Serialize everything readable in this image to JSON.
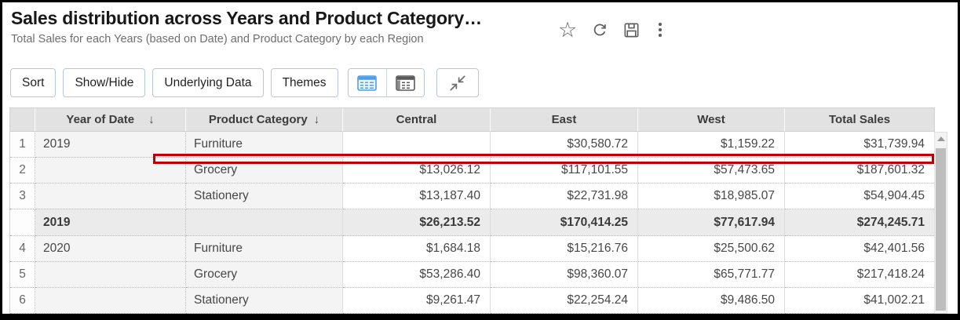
{
  "header": {
    "title": "Sales distribution across Years and Product Category…",
    "subtitle": "Total Sales for each Years (based on Date) and Product Category by each Region",
    "actions": [
      "favorite",
      "refresh",
      "save",
      "more-options"
    ]
  },
  "toolbar": {
    "buttons": [
      "Sort",
      "Show/Hide",
      "Underlying Data",
      "Themes"
    ],
    "view_toggle": [
      "table-view",
      "pivot-view"
    ],
    "collapse": "collapse-panel",
    "accent_color": "#4f9fe6"
  },
  "table": {
    "columns": [
      "",
      "Year of Date",
      "Product Category",
      "Central",
      "East",
      "West",
      "Total Sales"
    ],
    "sort_arrow": "↓",
    "sorted_columns": [
      "Year of Date",
      "Product Category"
    ],
    "rows": [
      {
        "type": "data",
        "num": "1",
        "year": "2019",
        "product": "Furniture",
        "central": "",
        "east": "$30,580.72",
        "west": "$1,159.22",
        "total": "$31,739.94"
      },
      {
        "type": "data",
        "num": "2",
        "year": "",
        "product": "Grocery",
        "central": "$13,026.12",
        "east": "$117,101.55",
        "west": "$57,473.65",
        "total": "$187,601.32"
      },
      {
        "type": "data",
        "num": "3",
        "year": "",
        "product": "Stationery",
        "central": "$13,187.40",
        "east": "$22,731.98",
        "west": "$18,985.07",
        "total": "$54,904.45"
      },
      {
        "type": "subtotal",
        "num": "",
        "year": "2019",
        "product": "",
        "central": "$26,213.52",
        "east": "$170,414.25",
        "west": "$77,617.94",
        "total": "$274,245.71"
      },
      {
        "type": "data",
        "num": "4",
        "year": "2020",
        "product": "Furniture",
        "central": "$1,684.18",
        "east": "$15,216.76",
        "west": "$25,500.62",
        "total": "$42,401.56"
      },
      {
        "type": "data",
        "num": "5",
        "year": "",
        "product": "Grocery",
        "central": "$53,286.40",
        "east": "$98,360.07",
        "west": "$65,771.77",
        "total": "$217,418.24"
      },
      {
        "type": "data",
        "num": "6",
        "year": "",
        "product": "Stationery",
        "central": "$9,261.47",
        "east": "$22,254.24",
        "west": "$9,486.50",
        "total": "$41,002.21"
      }
    ]
  },
  "annotation": {
    "type": "highlight-box",
    "color": "#c00000"
  },
  "scrollbar": {
    "orientation": "vertical"
  }
}
